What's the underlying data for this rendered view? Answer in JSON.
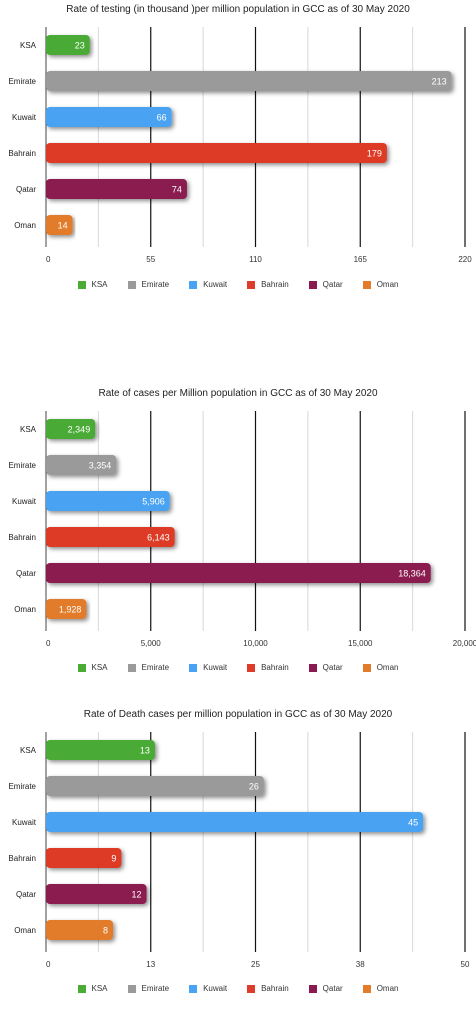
{
  "chart_data": [
    {
      "type": "bar",
      "orientation": "horizontal",
      "title": "Rate of testing (in thousand )per million population in GCC as of 30 May 2020",
      "categories": [
        "KSA",
        "Emirate",
        "Kuwait",
        "Bahrain",
        "Qatar",
        "Oman"
      ],
      "values": [
        23,
        213,
        66,
        179,
        74,
        14
      ],
      "value_labels": [
        "23",
        "213",
        "66",
        "179",
        "74",
        "14"
      ],
      "xlim": [
        0,
        220
      ],
      "xticks": [
        "0",
        "55",
        "110",
        "165",
        "220"
      ],
      "grid": true,
      "legend": "bottom"
    },
    {
      "type": "bar",
      "orientation": "horizontal",
      "title": "Rate of cases per Million population in  GCC as of 30 May 2020",
      "categories": [
        "KSA",
        "Emirate",
        "Kuwait",
        "Bahrain",
        "Qatar",
        "Oman"
      ],
      "values": [
        2349,
        3354,
        5906,
        6143,
        18364,
        1928
      ],
      "value_labels": [
        "2,349",
        "3,354",
        "5,906",
        "6,143",
        "18,364",
        "1,928"
      ],
      "xlim": [
        0,
        20000
      ],
      "xticks": [
        "0",
        "5,000",
        "10,000",
        "15,000",
        "20,000"
      ],
      "grid": true,
      "legend": "bottom"
    },
    {
      "type": "bar",
      "orientation": "horizontal",
      "title": "Rate of Death cases per million population in GCC as of 30 May 2020",
      "categories": [
        "KSA",
        "Emirate",
        "Kuwait",
        "Bahrain",
        "Qatar",
        "Oman"
      ],
      "values": [
        13,
        26,
        45,
        9,
        12,
        8
      ],
      "value_labels": [
        "13",
        "26",
        "45",
        "9",
        "12",
        "8"
      ],
      "xlim": [
        0,
        50
      ],
      "xticks": [
        "0",
        "13",
        "25",
        "38",
        "50"
      ],
      "grid": true,
      "legend": "bottom"
    }
  ],
  "colors": [
    "#4aab35",
    "#9a9a9a",
    "#4aa3f2",
    "#de3b28",
    "#8a1a50",
    "#e27b2a"
  ]
}
